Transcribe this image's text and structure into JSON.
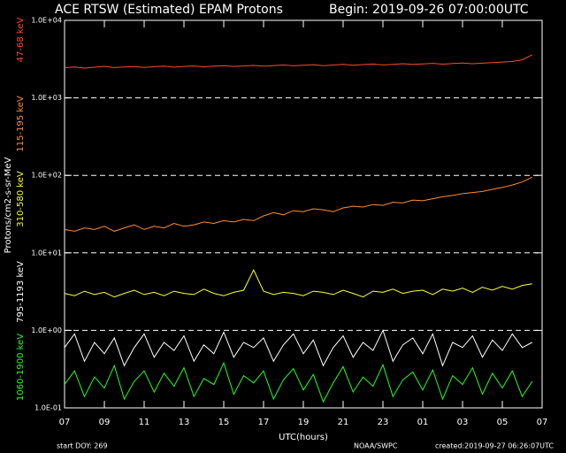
{
  "chart_data": {
    "type": "line",
    "title": "ACE RTSW (Estimated) EPAM Protons",
    "subtitle": "Begin: 2019-09-26 07:00:00UTC",
    "x_label": "UTC(hours)",
    "y_label": "Protons/cm2-s-sr-MeV",
    "footer_left": "start DOY:  269",
    "footer_center": "NOAA/SWPC",
    "footer_right": "created:2019-09-27 06:26:07UTC",
    "log": true,
    "grid": true,
    "xlim": [
      0,
      24
    ],
    "xticks": [
      {
        "value": 0,
        "label": "07"
      },
      {
        "value": 2,
        "label": "09"
      },
      {
        "value": 4,
        "label": "11"
      },
      {
        "value": 6,
        "label": "13"
      },
      {
        "value": 8,
        "label": "15"
      },
      {
        "value": 10,
        "label": "17"
      },
      {
        "value": 12,
        "label": "19"
      },
      {
        "value": 14,
        "label": "21"
      },
      {
        "value": 16,
        "label": "23"
      },
      {
        "value": 18,
        "label": "01"
      },
      {
        "value": 20,
        "label": "03"
      },
      {
        "value": 22,
        "label": "05"
      },
      {
        "value": 24,
        "label": "07"
      }
    ],
    "ylim": [
      0.1,
      10000
    ],
    "yticks": [
      {
        "value": 0.1,
        "label": "1.0E-01"
      },
      {
        "value": 1,
        "label": "1.0E+00"
      },
      {
        "value": 10,
        "label": "1.0E+01"
      },
      {
        "value": 100,
        "label": "1.0E+02"
      },
      {
        "value": 1000,
        "label": "1.0E+03"
      },
      {
        "value": 10000,
        "label": "1.0E+04"
      }
    ],
    "x": [
      0,
      0.5,
      1,
      1.5,
      2,
      2.5,
      3,
      3.5,
      4,
      4.5,
      5,
      5.5,
      6,
      6.5,
      7,
      7.5,
      8,
      8.5,
      9,
      9.5,
      10,
      10.5,
      11,
      11.5,
      12,
      12.5,
      13,
      13.5,
      14,
      14.5,
      15,
      15.5,
      16,
      16.5,
      17,
      17.5,
      18,
      18.5,
      19,
      19.5,
      20,
      20.5,
      21,
      21.5,
      22,
      22.5,
      23,
      23.5
    ],
    "series": [
      {
        "name": "47-68 keV",
        "color": "#ff4a2a",
        "values": [
          2450,
          2500,
          2420,
          2480,
          2550,
          2460,
          2500,
          2530,
          2470,
          2520,
          2560,
          2490,
          2540,
          2580,
          2510,
          2560,
          2600,
          2540,
          2580,
          2620,
          2560,
          2610,
          2650,
          2590,
          2630,
          2680,
          2600,
          2650,
          2700,
          2640,
          2690,
          2730,
          2660,
          2710,
          2760,
          2700,
          2740,
          2790,
          2720,
          2770,
          2820,
          2760,
          2800,
          2850,
          2900,
          2950,
          3100,
          3600
        ]
      },
      {
        "name": "115-195 keV",
        "color": "#ff8c30",
        "values": [
          20,
          19,
          21,
          20,
          22,
          19,
          21,
          23,
          20,
          22,
          21,
          24,
          22,
          23,
          25,
          24,
          26,
          25,
          27,
          26,
          30,
          33,
          31,
          35,
          34,
          37,
          36,
          34,
          38,
          40,
          39,
          42,
          41,
          45,
          44,
          48,
          47,
          50,
          53,
          55,
          58,
          60,
          62,
          66,
          70,
          75,
          82,
          95
        ]
      },
      {
        "name": "310-580 keV",
        "color": "#ffff30",
        "values": [
          3,
          2.8,
          3.2,
          2.9,
          3.1,
          2.7,
          3,
          3.3,
          2.9,
          3.1,
          2.8,
          3.2,
          3,
          2.9,
          3.4,
          3,
          2.8,
          3.1,
          3.3,
          6,
          3.2,
          2.9,
          3.1,
          3,
          2.8,
          3.2,
          3.1,
          2.9,
          3.3,
          3,
          2.7,
          3.2,
          3.1,
          3.4,
          3,
          3.2,
          3.3,
          2.9,
          3.4,
          3.2,
          3.5,
          3.1,
          3.6,
          3.3,
          3.7,
          3.4,
          3.8,
          4
        ]
      },
      {
        "name": "795-1193 keV",
        "color": "#ffffff",
        "values": [
          0.6,
          0.9,
          0.4,
          0.7,
          0.5,
          0.8,
          0.35,
          0.6,
          0.9,
          0.45,
          0.7,
          0.55,
          0.85,
          0.4,
          0.65,
          0.5,
          0.95,
          0.45,
          0.7,
          0.6,
          0.8,
          0.4,
          0.65,
          0.9,
          0.5,
          0.75,
          0.35,
          0.6,
          0.85,
          0.45,
          0.7,
          0.55,
          1.0,
          0.4,
          0.65,
          0.8,
          0.5,
          0.9,
          0.35,
          0.7,
          0.6,
          0.85,
          0.45,
          0.75,
          0.55,
          0.9,
          0.6,
          0.7
        ]
      },
      {
        "name": "1060-1900 keV",
        "color": "#22ff22",
        "values": [
          0.2,
          0.3,
          0.14,
          0.25,
          0.18,
          0.35,
          0.13,
          0.22,
          0.3,
          0.16,
          0.28,
          0.19,
          0.33,
          0.14,
          0.24,
          0.2,
          0.38,
          0.15,
          0.26,
          0.21,
          0.3,
          0.13,
          0.23,
          0.32,
          0.17,
          0.27,
          0.12,
          0.21,
          0.34,
          0.16,
          0.25,
          0.19,
          0.36,
          0.14,
          0.23,
          0.29,
          0.17,
          0.31,
          0.13,
          0.26,
          0.2,
          0.33,
          0.15,
          0.28,
          0.18,
          0.3,
          0.14,
          0.22
        ]
      }
    ]
  }
}
